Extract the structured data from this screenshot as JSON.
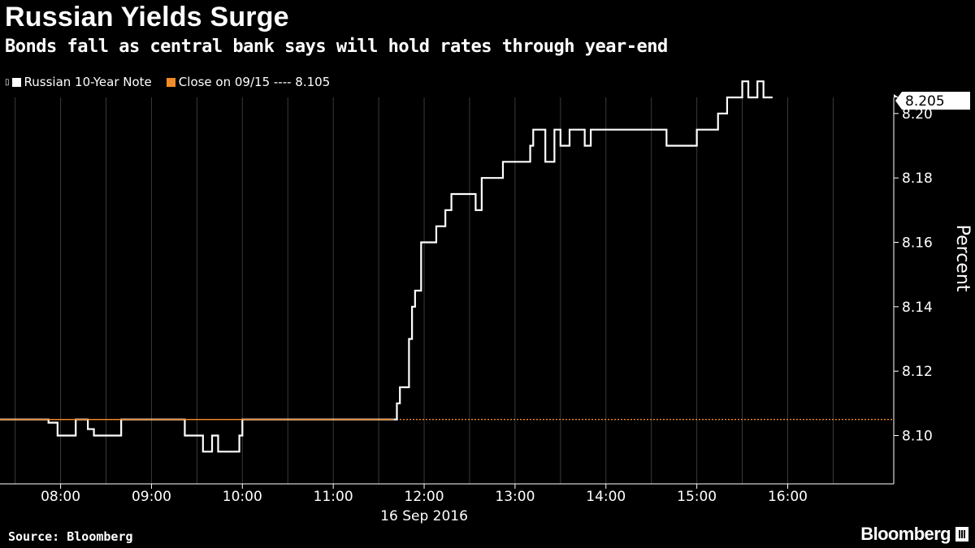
{
  "header": {
    "title": "Russian Yields Surge",
    "subtitle": "Bonds fall as central bank says will hold rates through year-end"
  },
  "legend": {
    "series_label": "Russian 10-Year Note",
    "close_label": "Close on 09/15 ---- 8.105"
  },
  "footer": {
    "source": "Source: Bloomberg",
    "brand": "Bloomberg"
  },
  "colors": {
    "background": "#000000",
    "series": "#ffffff",
    "close_line": "#f28c28",
    "grid": "#3a3a3a"
  },
  "chart_data": {
    "type": "line",
    "title": "Russian Yields Surge",
    "subtitle": "Bonds fall as central bank says will hold rates through year-end",
    "xlabel": "16 Sep 2016",
    "ylabel": "Percent",
    "x_ticks": [
      "08:00",
      "09:00",
      "10:00",
      "11:00",
      "12:00",
      "13:00",
      "14:00",
      "15:00",
      "16:00"
    ],
    "y_ticks": [
      "8.10",
      "8.12",
      "8.14",
      "8.16",
      "8.18",
      "8.20"
    ],
    "ylim": [
      8.085,
      8.205
    ],
    "xlim": [
      "07:20",
      "17:10"
    ],
    "grid": "vertical",
    "legend_position": "top-left",
    "last_value_label": "8.205",
    "reference_line": {
      "name": "Close on 09/15",
      "value": 8.105
    },
    "series": [
      {
        "name": "Russian 10-Year Note",
        "x": [
          "07:20",
          "07:48",
          "07:52",
          "07:58",
          "08:02",
          "08:10",
          "08:14",
          "08:18",
          "08:22",
          "08:30",
          "08:40",
          "09:20",
          "09:22",
          "09:30",
          "09:34",
          "09:40",
          "09:44",
          "09:58",
          "10:00",
          "10:06",
          "10:16",
          "10:20",
          "10:28",
          "10:48",
          "11:00",
          "11:40",
          "11:42",
          "11:44",
          "11:48",
          "11:50",
          "11:52",
          "11:54",
          "11:56",
          "11:58",
          "12:06",
          "12:08",
          "12:10",
          "12:14",
          "12:18",
          "12:20",
          "12:22",
          "12:28",
          "12:34",
          "12:38",
          "12:40",
          "12:44",
          "12:52",
          "12:58",
          "13:10",
          "13:12",
          "13:18",
          "13:20",
          "13:26",
          "13:30",
          "13:36",
          "13:44",
          "13:46",
          "13:50",
          "13:54",
          "13:58",
          "14:02",
          "14:08",
          "14:22",
          "14:32",
          "14:40",
          "14:50",
          "14:56",
          "15:00",
          "15:04",
          "15:10",
          "15:14",
          "15:20",
          "15:24",
          "15:30",
          "15:34",
          "15:40",
          "15:44",
          "15:50"
        ],
        "values": [
          8.105,
          8.105,
          8.104,
          8.1,
          8.1,
          8.105,
          8.105,
          8.102,
          8.1,
          8.1,
          8.105,
          8.105,
          8.1,
          8.1,
          8.095,
          8.1,
          8.095,
          8.1,
          8.105,
          8.105,
          8.105,
          8.105,
          8.105,
          8.105,
          8.105,
          8.105,
          8.11,
          8.115,
          8.115,
          8.13,
          8.14,
          8.145,
          8.145,
          8.16,
          8.16,
          8.165,
          8.165,
          8.17,
          8.175,
          8.175,
          8.175,
          8.175,
          8.17,
          8.18,
          8.18,
          8.18,
          8.185,
          8.185,
          8.19,
          8.195,
          8.195,
          8.185,
          8.195,
          8.19,
          8.195,
          8.195,
          8.19,
          8.195,
          8.195,
          8.195,
          8.195,
          8.195,
          8.195,
          8.195,
          8.19,
          8.19,
          8.19,
          8.195,
          8.195,
          8.195,
          8.2,
          8.205,
          8.205,
          8.21,
          8.205,
          8.21,
          8.205,
          8.205
        ]
      }
    ]
  }
}
